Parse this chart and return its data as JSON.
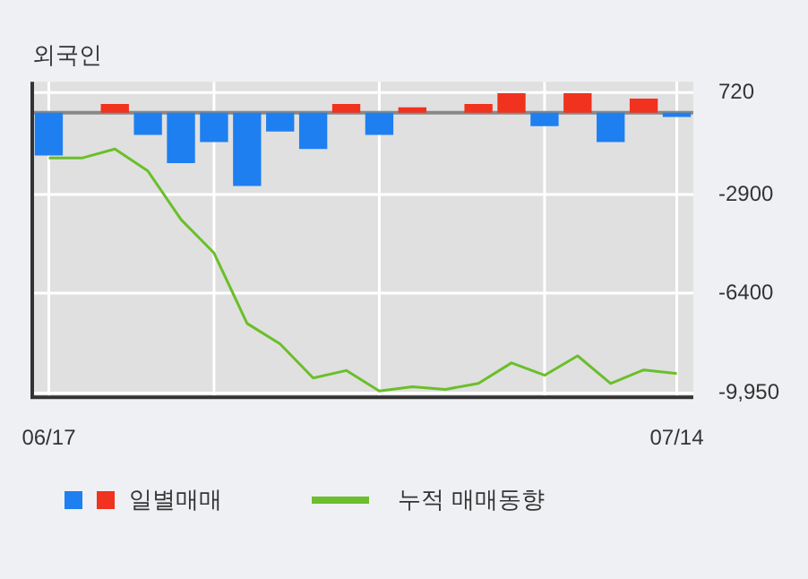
{
  "chart_data": {
    "type": "bar",
    "title": "외국인",
    "categories": [
      "06/17",
      null,
      null,
      null,
      null,
      null,
      null,
      null,
      null,
      null,
      null,
      null,
      null,
      null,
      null,
      null,
      null,
      null,
      null,
      "07/14"
    ],
    "series": [
      {
        "name": "일별매매",
        "colors": [
          "#1e7ff0",
          "#f0321e",
          "#f0321e",
          "#1e7ff0",
          "#1e7ff0",
          "#1e7ff0",
          "#1e7ff0",
          "#1e7ff0",
          "#1e7ff0",
          "#f0321e",
          "#1e7ff0",
          "#f0321e",
          "#f0321e",
          "#f0321e",
          "#f0321e",
          "#1e7ff0",
          "#f0321e",
          "#1e7ff0",
          "#f0321e",
          "#1e7ff0"
        ],
        "values": [
          -1520,
          0,
          310,
          -790,
          -1790,
          -1040,
          -2600,
          -670,
          -1290,
          310,
          -790,
          190,
          0,
          310,
          690,
          -480,
          690,
          -1040,
          500,
          -150
        ]
      },
      {
        "type": "line",
        "name": "누적 매매동향",
        "color": "#6abf2a",
        "values": [
          -1610,
          -1610,
          -1290,
          -2070,
          -3790,
          -4980,
          -7480,
          -8210,
          -9420,
          -9150,
          -9880,
          -9730,
          -9820,
          -9610,
          -8880,
          -9320,
          -8630,
          -9610,
          -9130,
          -9260
        ]
      }
    ],
    "ylim": [
      -10100,
      1100
    ],
    "yticks": [
      720,
      -2900,
      -6400,
      {
        "value": -9950,
        "label": "-9,950"
      }
    ],
    "grid": true,
    "legend": "bottom",
    "marker": "none"
  }
}
